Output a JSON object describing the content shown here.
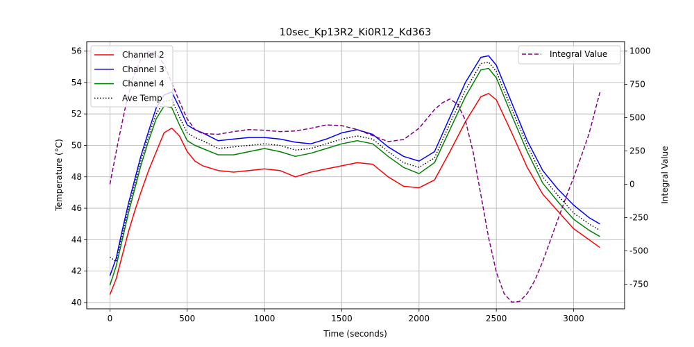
{
  "chart_data": {
    "type": "line",
    "title": "10sec_Kp13R2_Ki0R12_Kd363",
    "xlabel": "Time (seconds)",
    "ylabel": "Temperature (°C)",
    "y2label": "Integral Value",
    "xlim": [
      -150,
      3330
    ],
    "ylim": [
      39.6,
      56.6
    ],
    "y2lim": [
      -935,
      1070
    ],
    "xticks": [
      0,
      500,
      1000,
      1500,
      2000,
      2500,
      3000
    ],
    "yticks": [
      40,
      42,
      44,
      46,
      48,
      50,
      52,
      54,
      56
    ],
    "y2ticks": [
      -750,
      -500,
      -250,
      0,
      250,
      500,
      750,
      1000
    ],
    "grid": true,
    "legend_left": "top-left",
    "legend_right": "top-right",
    "series": [
      {
        "name": "Channel 2",
        "axis": "left",
        "color": "#ff0000",
        "style": "solid",
        "x": [
          0,
          40,
          80,
          120,
          160,
          200,
          250,
          300,
          350,
          400,
          450,
          500,
          550,
          600,
          700,
          800,
          900,
          1000,
          1100,
          1200,
          1300,
          1400,
          1500,
          1600,
          1700,
          1800,
          1900,
          2000,
          2100,
          2200,
          2300,
          2400,
          2450,
          2500,
          2600,
          2700,
          2800,
          2900,
          3000,
          3100,
          3170
        ],
        "values": [
          40.5,
          41.5,
          43.0,
          44.5,
          45.8,
          47.0,
          48.4,
          49.6,
          50.8,
          51.1,
          50.6,
          49.6,
          49.0,
          48.7,
          48.4,
          48.3,
          48.4,
          48.5,
          48.4,
          48.0,
          48.3,
          48.5,
          48.7,
          48.9,
          48.8,
          48.0,
          47.4,
          47.3,
          47.8,
          49.6,
          51.5,
          53.1,
          53.3,
          52.9,
          50.8,
          48.6,
          46.9,
          45.8,
          44.7,
          44.0,
          43.5
        ]
      },
      {
        "name": "Channel 3",
        "axis": "left",
        "color": "#0000ff",
        "style": "solid",
        "x": [
          0,
          40,
          80,
          120,
          160,
          200,
          250,
          300,
          350,
          400,
          450,
          500,
          550,
          600,
          700,
          800,
          900,
          1000,
          1100,
          1200,
          1300,
          1400,
          1500,
          1600,
          1700,
          1800,
          1900,
          2000,
          2100,
          2200,
          2300,
          2400,
          2450,
          2500,
          2600,
          2700,
          2800,
          2900,
          3000,
          3100,
          3170
        ],
        "values": [
          41.7,
          42.8,
          44.6,
          46.3,
          47.8,
          49.3,
          50.9,
          52.4,
          53.2,
          53.4,
          52.4,
          51.3,
          51.0,
          50.8,
          50.3,
          50.4,
          50.5,
          50.5,
          50.4,
          50.2,
          50.1,
          50.4,
          50.8,
          51.0,
          50.7,
          49.9,
          49.3,
          49.0,
          49.6,
          51.8,
          54.0,
          55.6,
          55.7,
          55.1,
          52.7,
          50.3,
          48.4,
          47.2,
          46.2,
          45.4,
          45.0
        ]
      },
      {
        "name": "Channel 4",
        "axis": "left",
        "color": "#008000",
        "style": "solid",
        "x": [
          0,
          40,
          80,
          120,
          160,
          200,
          250,
          300,
          350,
          400,
          450,
          500,
          550,
          600,
          700,
          800,
          900,
          1000,
          1100,
          1200,
          1300,
          1400,
          1500,
          1600,
          1700,
          1800,
          1900,
          2000,
          2100,
          2200,
          2300,
          2400,
          2450,
          2500,
          2600,
          2700,
          2800,
          2900,
          3000,
          3100,
          3170
        ],
        "values": [
          41.1,
          42.3,
          44.0,
          45.7,
          47.2,
          48.7,
          50.3,
          51.7,
          52.5,
          52.4,
          51.3,
          50.3,
          50.0,
          49.8,
          49.4,
          49.4,
          49.6,
          49.8,
          49.6,
          49.3,
          49.5,
          49.8,
          50.1,
          50.3,
          50.1,
          49.3,
          48.6,
          48.2,
          48.9,
          51.0,
          53.1,
          54.8,
          54.9,
          54.3,
          51.9,
          49.6,
          47.6,
          46.4,
          45.3,
          44.6,
          44.2
        ]
      },
      {
        "name": "Ave Temp",
        "axis": "left",
        "color": "#000000",
        "style": "dotted",
        "x": [
          0,
          40,
          80,
          120,
          160,
          200,
          250,
          300,
          350,
          400,
          450,
          500,
          550,
          600,
          700,
          800,
          900,
          1000,
          1100,
          1200,
          1300,
          1400,
          1500,
          1600,
          1700,
          1800,
          1900,
          2000,
          2100,
          2200,
          2300,
          2400,
          2450,
          2500,
          2600,
          2700,
          2800,
          2900,
          3000,
          3100,
          3170
        ],
        "values": [
          42.9,
          42.6,
          44.3,
          46.0,
          47.5,
          49.0,
          50.6,
          52.0,
          52.8,
          52.9,
          51.8,
          50.8,
          50.5,
          50.3,
          49.8,
          49.9,
          50.0,
          50.1,
          50.0,
          49.7,
          49.8,
          50.1,
          50.4,
          50.6,
          50.4,
          49.6,
          48.9,
          48.6,
          49.2,
          51.4,
          53.5,
          55.2,
          55.3,
          54.7,
          52.3,
          50.0,
          48.0,
          46.8,
          45.7,
          45.0,
          44.6
        ]
      },
      {
        "name": "Integral Value",
        "axis": "right",
        "color": "#800080",
        "style": "dashed",
        "x": [
          0,
          50,
          100,
          150,
          200,
          250,
          300,
          350,
          400,
          450,
          500,
          550,
          600,
          700,
          800,
          900,
          1000,
          1100,
          1200,
          1300,
          1400,
          1500,
          1600,
          1700,
          1800,
          1900,
          2000,
          2050,
          2100,
          2150,
          2200,
          2250,
          2300,
          2350,
          2400,
          2450,
          2500,
          2550,
          2600,
          2650,
          2700,
          2750,
          2800,
          2850,
          2900,
          2950,
          3000,
          3050,
          3100,
          3170
        ],
        "values": [
          0,
          300,
          580,
          800,
          940,
          995,
          980,
          900,
          760,
          620,
          490,
          410,
          380,
          375,
          395,
          410,
          405,
          395,
          400,
          420,
          445,
          440,
          410,
          365,
          320,
          335,
          420,
          490,
          560,
          610,
          640,
          600,
          480,
          240,
          -80,
          -400,
          -660,
          -820,
          -885,
          -880,
          -820,
          -720,
          -580,
          -420,
          -260,
          -100,
          50,
          210,
          380,
          690
        ]
      }
    ]
  }
}
